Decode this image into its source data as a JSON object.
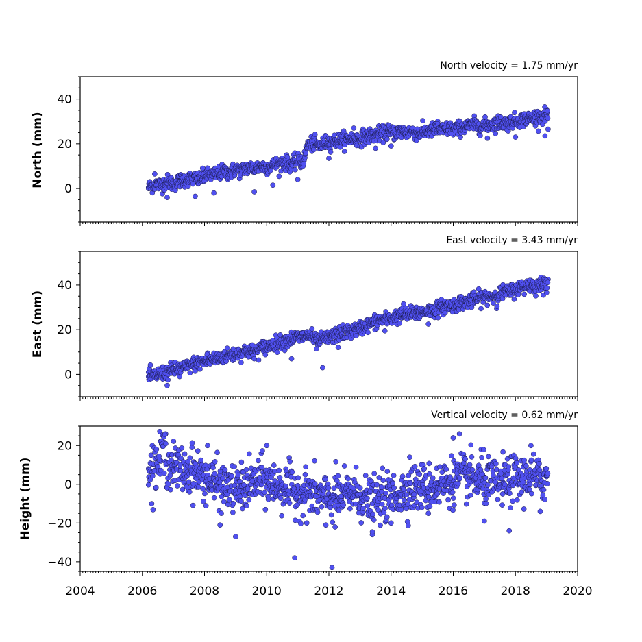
{
  "chart_data": [
    {
      "type": "scatter",
      "title": "North velocity = 1.75 mm/yr",
      "ylabel": "North (mm)",
      "ylim": [
        -15,
        50
      ],
      "yticks": [
        0,
        20,
        40
      ],
      "color": "#5050f0",
      "velocity_mm_per_yr": 1.75,
      "description_of_series": "daily positions; offset of ~+7 mm at 2011.2",
      "points": [
        [
          2006.2,
          0.5
        ],
        [
          2006.4,
          2.0
        ],
        [
          2006.6,
          1.5
        ],
        [
          2006.8,
          3.0
        ],
        [
          2007.0,
          2.0
        ],
        [
          2007.2,
          3.5
        ],
        [
          2007.4,
          4.0
        ],
        [
          2007.6,
          4.5
        ],
        [
          2007.8,
          4.0
        ],
        [
          2008.0,
          5.5
        ],
        [
          2008.2,
          6.0
        ],
        [
          2008.4,
          6.5
        ],
        [
          2008.6,
          7.5
        ],
        [
          2008.8,
          7.0
        ],
        [
          2009.0,
          8.5
        ],
        [
          2009.2,
          8.0
        ],
        [
          2009.4,
          9.5
        ],
        [
          2009.6,
          9.0
        ],
        [
          2009.8,
          10.0
        ],
        [
          2010.0,
          9.5
        ],
        [
          2010.2,
          10.5
        ],
        [
          2010.4,
          11.0
        ],
        [
          2010.6,
          11.5
        ],
        [
          2010.8,
          11.0
        ],
        [
          2011.0,
          12.0
        ],
        [
          2011.2,
          12.5
        ],
        [
          2011.3,
          19.5
        ],
        [
          2011.5,
          20.0
        ],
        [
          2011.7,
          19.0
        ],
        [
          2011.9,
          20.5
        ],
        [
          2012.1,
          21.0
        ],
        [
          2012.3,
          21.5
        ],
        [
          2012.5,
          22.0
        ],
        [
          2012.7,
          22.5
        ],
        [
          2012.9,
          22.0
        ],
        [
          2013.1,
          23.0
        ],
        [
          2013.3,
          23.5
        ],
        [
          2013.5,
          24.0
        ],
        [
          2013.7,
          24.5
        ],
        [
          2013.9,
          25.0
        ],
        [
          2014.1,
          25.0
        ],
        [
          2014.3,
          25.5
        ],
        [
          2014.5,
          25.0
        ],
        [
          2014.7,
          25.5
        ],
        [
          2014.9,
          24.5
        ],
        [
          2015.1,
          25.5
        ],
        [
          2015.3,
          26.0
        ],
        [
          2015.5,
          26.5
        ],
        [
          2015.7,
          26.0
        ],
        [
          2015.9,
          27.0
        ],
        [
          2016.1,
          26.5
        ],
        [
          2016.3,
          27.5
        ],
        [
          2016.5,
          28.0
        ],
        [
          2016.7,
          28.5
        ],
        [
          2016.9,
          27.5
        ],
        [
          2017.1,
          28.5
        ],
        [
          2017.3,
          29.0
        ],
        [
          2017.5,
          29.5
        ],
        [
          2017.7,
          29.0
        ],
        [
          2017.9,
          30.0
        ],
        [
          2018.1,
          30.5
        ],
        [
          2018.3,
          31.0
        ],
        [
          2018.5,
          31.5
        ],
        [
          2018.7,
          32.0
        ],
        [
          2018.9,
          32.5
        ],
        [
          2019.0,
          33.0
        ],
        [
          2006.8,
          -4.0
        ],
        [
          2007.7,
          -3.5
        ],
        [
          2008.3,
          -2.0
        ],
        [
          2009.6,
          -1.5
        ],
        [
          2010.2,
          1.5
        ],
        [
          2011.0,
          4.0
        ],
        [
          2012.0,
          13.5
        ],
        [
          2013.5,
          18.0
        ],
        [
          2014.0,
          19.0
        ],
        [
          2016.0,
          24.0
        ],
        [
          2017.1,
          22.5
        ],
        [
          2018.0,
          23.0
        ],
        [
          2018.95,
          23.5
        ],
        [
          2019.05,
          26.5
        ],
        [
          2006.4,
          6.5
        ],
        [
          2008.6,
          9.5
        ],
        [
          2010.5,
          13.5
        ],
        [
          2012.8,
          27.0
        ],
        [
          2013.9,
          28.5
        ],
        [
          2015.5,
          30.0
        ],
        [
          2017.5,
          32.0
        ],
        [
          2018.6,
          34.0
        ],
        [
          2019.0,
          35.5
        ]
      ]
    },
    {
      "type": "scatter",
      "title": "East velocity = 3.43 mm/yr",
      "ylabel": "East (mm)",
      "ylim": [
        -10,
        55
      ],
      "yticks": [
        0,
        20,
        40
      ],
      "color": "#5050f0",
      "velocity_mm_per_yr": 3.43,
      "points": [
        [
          2006.2,
          -1.0
        ],
        [
          2006.4,
          -0.5
        ],
        [
          2006.6,
          0.5
        ],
        [
          2006.8,
          1.0
        ],
        [
          2007.0,
          2.0
        ],
        [
          2007.2,
          2.5
        ],
        [
          2007.4,
          3.0
        ],
        [
          2007.6,
          4.5
        ],
        [
          2007.8,
          5.0
        ],
        [
          2008.0,
          6.0
        ],
        [
          2008.2,
          6.5
        ],
        [
          2008.4,
          7.0
        ],
        [
          2008.6,
          8.0
        ],
        [
          2008.8,
          8.5
        ],
        [
          2009.0,
          9.0
        ],
        [
          2009.2,
          10.0
        ],
        [
          2009.4,
          10.5
        ],
        [
          2009.6,
          10.0
        ],
        [
          2009.8,
          11.5
        ],
        [
          2010.0,
          12.5
        ],
        [
          2010.2,
          13.5
        ],
        [
          2010.4,
          14.0
        ],
        [
          2010.6,
          15.0
        ],
        [
          2010.8,
          16.0
        ],
        [
          2011.0,
          16.5
        ],
        [
          2011.2,
          17.0
        ],
        [
          2011.4,
          17.5
        ],
        [
          2011.6,
          14.5
        ],
        [
          2011.8,
          15.5
        ],
        [
          2012.0,
          16.5
        ],
        [
          2012.2,
          17.5
        ],
        [
          2012.4,
          18.5
        ],
        [
          2012.6,
          19.0
        ],
        [
          2012.8,
          19.5
        ],
        [
          2013.0,
          20.5
        ],
        [
          2013.2,
          22.0
        ],
        [
          2013.4,
          23.0
        ],
        [
          2013.6,
          24.0
        ],
        [
          2013.8,
          24.5
        ],
        [
          2014.0,
          25.0
        ],
        [
          2014.2,
          26.0
        ],
        [
          2014.4,
          26.5
        ],
        [
          2014.6,
          27.0
        ],
        [
          2014.8,
          27.5
        ],
        [
          2015.0,
          28.0
        ],
        [
          2015.2,
          28.5
        ],
        [
          2015.4,
          29.0
        ],
        [
          2015.6,
          30.0
        ],
        [
          2015.8,
          30.5
        ],
        [
          2016.0,
          31.0
        ],
        [
          2016.2,
          32.0
        ],
        [
          2016.4,
          32.5
        ],
        [
          2016.6,
          33.0
        ],
        [
          2016.8,
          34.0
        ],
        [
          2017.0,
          34.5
        ],
        [
          2017.2,
          35.0
        ],
        [
          2017.4,
          35.5
        ],
        [
          2017.6,
          36.5
        ],
        [
          2017.8,
          37.0
        ],
        [
          2018.0,
          38.0
        ],
        [
          2018.2,
          39.0
        ],
        [
          2018.4,
          40.0
        ],
        [
          2018.6,
          39.5
        ],
        [
          2018.8,
          40.0
        ],
        [
          2019.0,
          41.0
        ],
        [
          2019.05,
          42.5
        ],
        [
          2006.8,
          -5.0
        ],
        [
          2011.8,
          3.0
        ],
        [
          2010.8,
          7.0
        ],
        [
          2009.5,
          8.0
        ],
        [
          2012.3,
          12.0
        ],
        [
          2013.8,
          19.5
        ],
        [
          2015.2,
          22.5
        ],
        [
          2016.1,
          28.0
        ],
        [
          2017.4,
          29.5
        ],
        [
          2018.9,
          35.5
        ],
        [
          2014.4,
          31.5
        ],
        [
          2016.2,
          34.5
        ],
        [
          2017.8,
          39.5
        ],
        [
          2018.5,
          42.0
        ],
        [
          2008.1,
          9.5
        ],
        [
          2007.2,
          -1.0
        ],
        [
          2012.7,
          20.5
        ],
        [
          2014.9,
          25.0
        ]
      ]
    },
    {
      "type": "scatter",
      "title": "Vertical velocity = 0.62 mm/yr",
      "ylabel": "Height (mm)",
      "ylim": [
        -45,
        30
      ],
      "yticks": [
        -40,
        -20,
        0,
        20
      ],
      "color": "#5050f0",
      "velocity_mm_per_yr": 0.62,
      "points": [
        [
          2006.2,
          8.0
        ],
        [
          2006.4,
          10.0
        ],
        [
          2006.6,
          12.0
        ],
        [
          2006.8,
          11.0
        ],
        [
          2007.0,
          9.0
        ],
        [
          2007.2,
          8.0
        ],
        [
          2007.4,
          6.0
        ],
        [
          2007.6,
          7.0
        ],
        [
          2007.8,
          5.0
        ],
        [
          2008.0,
          4.0
        ],
        [
          2008.2,
          1.0
        ],
        [
          2008.4,
          0.0
        ],
        [
          2008.6,
          -1.0
        ],
        [
          2008.8,
          -2.0
        ],
        [
          2009.0,
          -3.0
        ],
        [
          2009.2,
          -2.0
        ],
        [
          2009.4,
          -1.0
        ],
        [
          2009.6,
          1.0
        ],
        [
          2009.8,
          2.0
        ],
        [
          2010.0,
          1.0
        ],
        [
          2010.2,
          0.0
        ],
        [
          2010.4,
          -1.0
        ],
        [
          2010.6,
          -2.0
        ],
        [
          2010.8,
          -3.0
        ],
        [
          2011.0,
          -4.0
        ],
        [
          2011.2,
          -5.0
        ],
        [
          2011.4,
          -4.0
        ],
        [
          2011.6,
          -6.0
        ],
        [
          2011.8,
          -7.0
        ],
        [
          2012.0,
          -8.0
        ],
        [
          2012.2,
          -6.0
        ],
        [
          2012.4,
          -7.0
        ],
        [
          2012.6,
          -5.0
        ],
        [
          2012.8,
          -4.0
        ],
        [
          2013.0,
          -6.0
        ],
        [
          2013.2,
          -8.0
        ],
        [
          2013.4,
          -10.0
        ],
        [
          2013.6,
          -8.0
        ],
        [
          2013.8,
          -7.0
        ],
        [
          2014.0,
          -6.0
        ],
        [
          2014.2,
          -5.0
        ],
        [
          2014.4,
          -4.0
        ],
        [
          2014.6,
          -3.0
        ],
        [
          2014.8,
          -2.0
        ],
        [
          2015.0,
          -1.0
        ],
        [
          2015.2,
          -2.0
        ],
        [
          2015.4,
          -1.0
        ],
        [
          2015.6,
          0.0
        ],
        [
          2015.8,
          1.0
        ],
        [
          2016.0,
          2.0
        ],
        [
          2016.2,
          3.0
        ],
        [
          2016.4,
          4.0
        ],
        [
          2016.6,
          3.0
        ],
        [
          2016.8,
          2.0
        ],
        [
          2017.0,
          1.0
        ],
        [
          2017.2,
          2.0
        ],
        [
          2017.4,
          0.0
        ],
        [
          2017.6,
          1.0
        ],
        [
          2017.8,
          2.0
        ],
        [
          2018.0,
          3.0
        ],
        [
          2018.2,
          2.0
        ],
        [
          2018.4,
          4.0
        ],
        [
          2018.6,
          3.0
        ],
        [
          2018.8,
          2.0
        ],
        [
          2019.0,
          4.0
        ],
        [
          2006.6,
          22.0
        ],
        [
          2006.75,
          26.0
        ],
        [
          2007.6,
          19.0
        ],
        [
          2008.1,
          20.0
        ],
        [
          2009.0,
          -27.0
        ],
        [
          2010.9,
          -38.0
        ],
        [
          2012.1,
          -43.0
        ],
        [
          2016.0,
          24.0
        ],
        [
          2016.2,
          26.0
        ],
        [
          2018.5,
          20.0
        ],
        [
          2017.8,
          -24.0
        ],
        [
          2013.4,
          -26.0
        ],
        [
          2012.2,
          -22.0
        ],
        [
          2008.5,
          -21.0
        ],
        [
          2006.3,
          -10.0
        ],
        [
          2010.0,
          20.0
        ],
        [
          2014.6,
          14.0
        ],
        [
          2016.9,
          18.0
        ],
        [
          2011.9,
          -21.0
        ],
        [
          2014.0,
          -20.0
        ],
        [
          2018.8,
          -14.0
        ],
        [
          2017.0,
          -19.0
        ],
        [
          2015.2,
          -15.0
        ]
      ]
    }
  ],
  "x_axis": {
    "xlim": [
      2004,
      2020
    ],
    "ticks": [
      "2004",
      "2006",
      "2008",
      "2010",
      "2012",
      "2014",
      "2016",
      "2018",
      "2020"
    ]
  }
}
